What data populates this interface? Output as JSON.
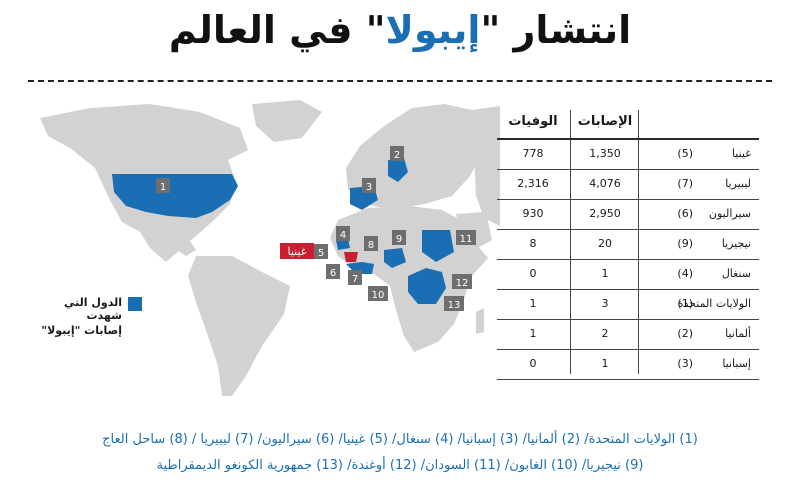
{
  "title": {
    "before": "انتشار \"",
    "highlight": "إيبولا",
    "after": "\" في العالم"
  },
  "table": {
    "header_cases": "الإصابات",
    "header_deaths": "الوفيات",
    "rows": [
      {
        "num": "(5)",
        "name": "غينيا",
        "cases": "1,350",
        "deaths": "778"
      },
      {
        "num": "(7)",
        "name": "ليبيريا",
        "cases": "4,076",
        "deaths": "2,316"
      },
      {
        "num": "(6)",
        "name": "سيراليون",
        "cases": "2,950",
        "deaths": "930"
      },
      {
        "num": "(9)",
        "name": "نيجيريا",
        "cases": "20",
        "deaths": "8"
      },
      {
        "num": "(4)",
        "name": "سنغال",
        "cases": "1",
        "deaths": "0"
      },
      {
        "num": "(1)",
        "name": "الولايات المتحدة",
        "cases": "3",
        "deaths": "1"
      },
      {
        "num": "(2)",
        "name": "ألمانيا",
        "cases": "2",
        "deaths": "1"
      },
      {
        "num": "(3)",
        "name": "إسبانيا",
        "cases": "1",
        "deaths": "0"
      }
    ]
  },
  "legend": {
    "line1": "الدول التي شهدت",
    "line2": "إصابات \"إيبولا\"",
    "color": "#1a6fb4"
  },
  "map": {
    "land_color": "#d2d2d2",
    "affected_color": "#1a6fb4",
    "highlight_color": "#c8202e",
    "guinea_label": "غينيا",
    "markers": [
      "1",
      "2",
      "3",
      "4",
      "5",
      "6",
      "7",
      "8",
      "9",
      "10",
      "11",
      "12",
      "13"
    ]
  },
  "notes": {
    "line1": "(1) الولايات المتحدة/ (2) ألمانيا/ (3) إسبانيا/ (4) سنغال/ (5) غينيا/ (6) سيراليون/ (7) ليبيريا / (8) ساحل العاج",
    "line2": "(9) نيجيريا/ (10) الغابون/ (11) السودان/ (12) أوغندة/ (13) جمهورية الكونغو الديمقراطية"
  }
}
